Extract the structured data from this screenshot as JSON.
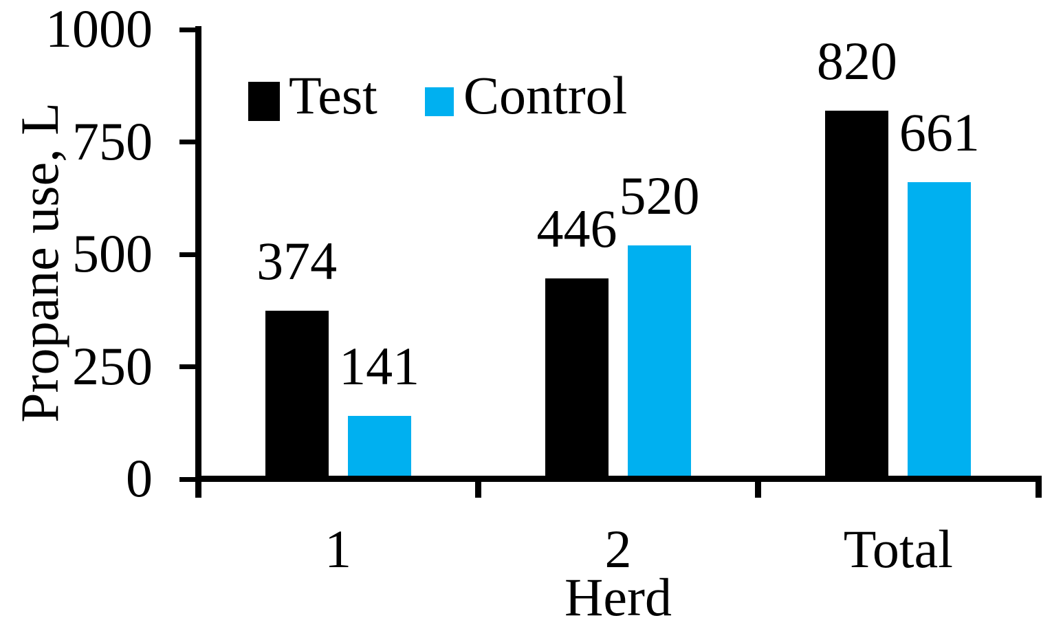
{
  "chart_data": {
    "type": "bar",
    "title": "",
    "categories": [
      "1",
      "2",
      "Total"
    ],
    "series": [
      {
        "name": "Test",
        "color": "#000000",
        "values": [
          374,
          446,
          820
        ]
      },
      {
        "name": "Control",
        "color": "#00B0F0",
        "values": [
          141,
          520,
          661
        ]
      }
    ],
    "xlabel": "Herd",
    "ylabel": "Propane use, L",
    "ylim": [
      0,
      1000
    ],
    "yticks": [
      0,
      250,
      500,
      750,
      1000
    ],
    "grid": false,
    "legend_position": "top-inside",
    "data_labels": [
      374,
      141,
      446,
      520,
      820,
      661
    ]
  },
  "colors": {
    "test_series": "#000000",
    "control_series": "#00B0F0",
    "axis": "#000000",
    "text": "#000000",
    "background": "#ffffff"
  }
}
